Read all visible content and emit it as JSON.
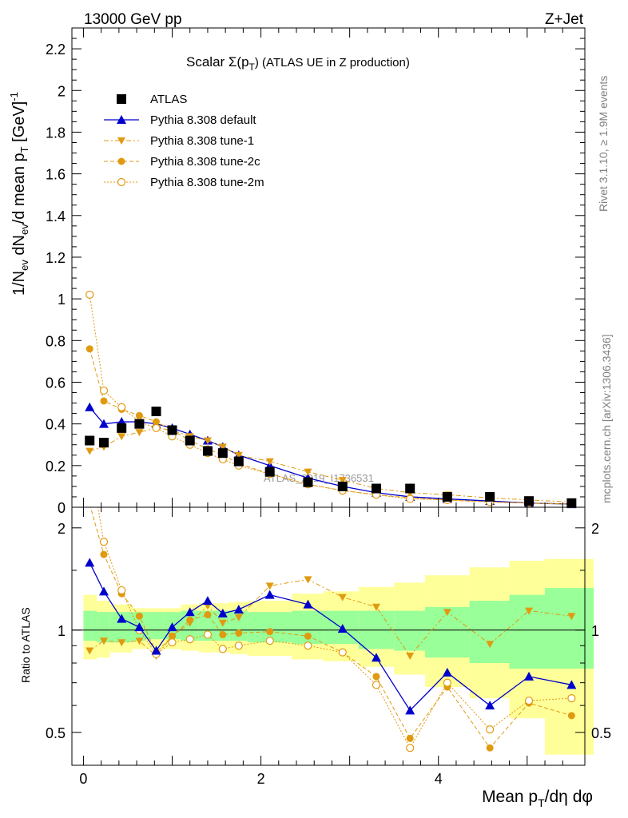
{
  "header": {
    "left": "13000 GeV pp",
    "right": "Z+Jet"
  },
  "side_labels": {
    "top": "Rivet 3.1.10, ≥ 1.9M events",
    "bottom": "mcplots.cern.ch [arXiv:1306.3436]"
  },
  "watermark": "ATLAS_2019_I1736531",
  "top_panel": {
    "title": "Scalar Σ(p",
    "title_sub": "T",
    "title_after": ") (ATLAS UE in Z production)",
    "ylabel": "1/N",
    "ylabel_parts": [
      "1/N",
      "ev",
      " dN",
      "ev",
      "/d mean p",
      "T",
      " [GeV]",
      "-1"
    ],
    "yticks": [
      "0",
      "0.2",
      "0.4",
      "0.6",
      "0.8",
      "1",
      "1.2",
      "1.4",
      "1.6",
      "1.8",
      "2",
      "2.2"
    ],
    "ylim": [
      0,
      2.3
    ]
  },
  "bottom_panel": {
    "ylabel": "Ratio to ATLAS",
    "yticks": [
      "0.5",
      "1",
      "2"
    ],
    "ylim": [
      0.4,
      2.3
    ]
  },
  "xaxis": {
    "label_parts": [
      "Mean p",
      "T",
      "/dη dφ"
    ],
    "ticks": [
      "0",
      "2",
      "4"
    ],
    "xlim": [
      -0.13,
      5.65
    ]
  },
  "legend": [
    {
      "label": "ATLAS",
      "series": "ATLAS"
    },
    {
      "label": "Pythia 8.308 default",
      "series": "default"
    },
    {
      "label": "Pythia 8.308 tune-1",
      "series": "tune1"
    },
    {
      "label": "Pythia 8.308 tune-2c",
      "series": "tune2c"
    },
    {
      "label": "Pythia 8.308 tune-2m",
      "series": "tune2m"
    }
  ],
  "colors": {
    "atlas": "#000000",
    "default": "#0000cc",
    "tune": "#e09a10",
    "band_stat": "#99ff99",
    "band_syst": "#ffff99"
  },
  "chart_data": {
    "type": "scatter",
    "bins": [
      [
        0.0,
        0.15
      ],
      [
        0.15,
        0.3
      ],
      [
        0.3,
        0.55
      ],
      [
        0.55,
        0.7
      ],
      [
        0.7,
        0.9
      ],
      [
        0.9,
        1.1
      ],
      [
        1.1,
        1.3
      ],
      [
        1.3,
        1.5
      ],
      [
        1.5,
        1.65
      ],
      [
        1.65,
        1.85
      ],
      [
        1.85,
        2.35
      ],
      [
        2.35,
        2.7
      ],
      [
        2.7,
        3.1
      ],
      [
        3.1,
        3.5
      ],
      [
        3.5,
        3.85
      ],
      [
        3.85,
        4.35
      ],
      [
        4.35,
        4.8
      ],
      [
        4.8,
        5.2
      ],
      [
        5.2,
        5.75
      ]
    ],
    "x": [
      0.07,
      0.23,
      0.43,
      0.63,
      0.82,
      1.0,
      1.2,
      1.4,
      1.57,
      1.75,
      2.1,
      2.53,
      2.92,
      3.3,
      3.68,
      4.1,
      4.58,
      5.02,
      5.5
    ],
    "atlas": [
      0.32,
      0.31,
      0.38,
      0.4,
      0.46,
      0.37,
      0.32,
      0.27,
      0.26,
      0.22,
      0.17,
      0.12,
      0.1,
      0.09,
      0.09,
      0.05,
      0.05,
      0.03,
      0.02
    ],
    "series": [
      {
        "name": "Pythia 8.308 default",
        "key": "default",
        "values": [
          0.48,
          0.4,
          0.41,
          0.41,
          0.4,
          0.38,
          0.35,
          0.32,
          0.29,
          0.25,
          0.2,
          0.14,
          0.1,
          0.07,
          0.05,
          0.04,
          0.03,
          0.02,
          0.015
        ]
      },
      {
        "name": "Pythia 8.308 tune-1",
        "key": "tune1",
        "values": [
          0.27,
          0.29,
          0.34,
          0.36,
          0.38,
          0.37,
          0.34,
          0.32,
          0.29,
          0.25,
          0.22,
          0.17,
          0.13,
          0.09,
          0.07,
          0.06,
          0.045,
          0.035,
          0.025
        ]
      },
      {
        "name": "Pythia 8.308 tune-2c",
        "key": "tune2c",
        "values": [
          0.76,
          0.51,
          0.47,
          0.44,
          0.41,
          0.37,
          0.32,
          0.28,
          0.25,
          0.21,
          0.16,
          0.11,
          0.08,
          0.06,
          0.045,
          0.035,
          0.025,
          0.02,
          0.015
        ]
      },
      {
        "name": "Pythia 8.308 tune-2m",
        "key": "tune2m",
        "values": [
          1.02,
          0.56,
          0.48,
          0.41,
          0.38,
          0.34,
          0.3,
          0.26,
          0.23,
          0.2,
          0.16,
          0.11,
          0.08,
          0.06,
          0.04,
          0.035,
          0.025,
          0.02,
          0.015
        ]
      }
    ],
    "ratio": {
      "default": [
        1.58,
        1.3,
        1.08,
        1.02,
        0.87,
        1.02,
        1.13,
        1.22,
        1.12,
        1.15,
        1.27,
        1.19,
        1.01,
        0.83,
        0.58,
        0.75,
        0.6,
        0.73,
        0.69
      ],
      "tune1": [
        0.87,
        0.93,
        0.92,
        0.93,
        0.84,
        0.96,
        1.05,
        1.18,
        1.05,
        1.09,
        1.35,
        1.41,
        1.25,
        1.17,
        0.84,
        1.13,
        0.91,
        1.14,
        1.1
      ],
      "tune2c": [
        2.35,
        1.67,
        1.28,
        1.1,
        0.86,
        0.96,
        1.07,
        1.11,
        0.97,
        0.98,
        0.99,
        0.96,
        0.86,
        0.73,
        0.48,
        0.68,
        0.45,
        0.61,
        0.56
      ],
      "tune2m": [
        3.18,
        1.82,
        1.31,
        1.0,
        0.85,
        0.92,
        0.94,
        0.97,
        0.88,
        0.9,
        0.93,
        0.9,
        0.86,
        0.69,
        0.45,
        0.7,
        0.51,
        0.62,
        0.63
      ],
      "stat": [
        [
          0.93,
          1.14
        ],
        [
          0.92,
          1.13
        ],
        [
          0.92,
          1.13
        ],
        [
          0.93,
          1.13
        ],
        [
          0.94,
          1.13
        ],
        [
          0.94,
          1.13
        ],
        [
          0.93,
          1.14
        ],
        [
          0.93,
          1.14
        ],
        [
          0.93,
          1.14
        ],
        [
          0.93,
          1.14
        ],
        [
          0.92,
          1.13
        ],
        [
          0.91,
          1.14
        ],
        [
          0.91,
          1.14
        ],
        [
          0.88,
          1.14
        ],
        [
          0.87,
          1.14
        ],
        [
          0.83,
          1.17
        ],
        [
          0.8,
          1.22
        ],
        [
          0.77,
          1.27
        ],
        [
          0.77,
          1.33
        ]
      ],
      "syst": [
        [
          0.82,
          1.27
        ],
        [
          0.83,
          1.22
        ],
        [
          0.86,
          1.19
        ],
        [
          0.88,
          1.16
        ],
        [
          0.88,
          1.16
        ],
        [
          0.88,
          1.16
        ],
        [
          0.87,
          1.19
        ],
        [
          0.86,
          1.2
        ],
        [
          0.86,
          1.2
        ],
        [
          0.85,
          1.21
        ],
        [
          0.84,
          1.22
        ],
        [
          0.82,
          1.28
        ],
        [
          0.81,
          1.3
        ],
        [
          0.78,
          1.34
        ],
        [
          0.74,
          1.38
        ],
        [
          0.68,
          1.45
        ],
        [
          0.63,
          1.53
        ],
        [
          0.55,
          1.6
        ],
        [
          0.43,
          1.62
        ]
      ]
    }
  }
}
